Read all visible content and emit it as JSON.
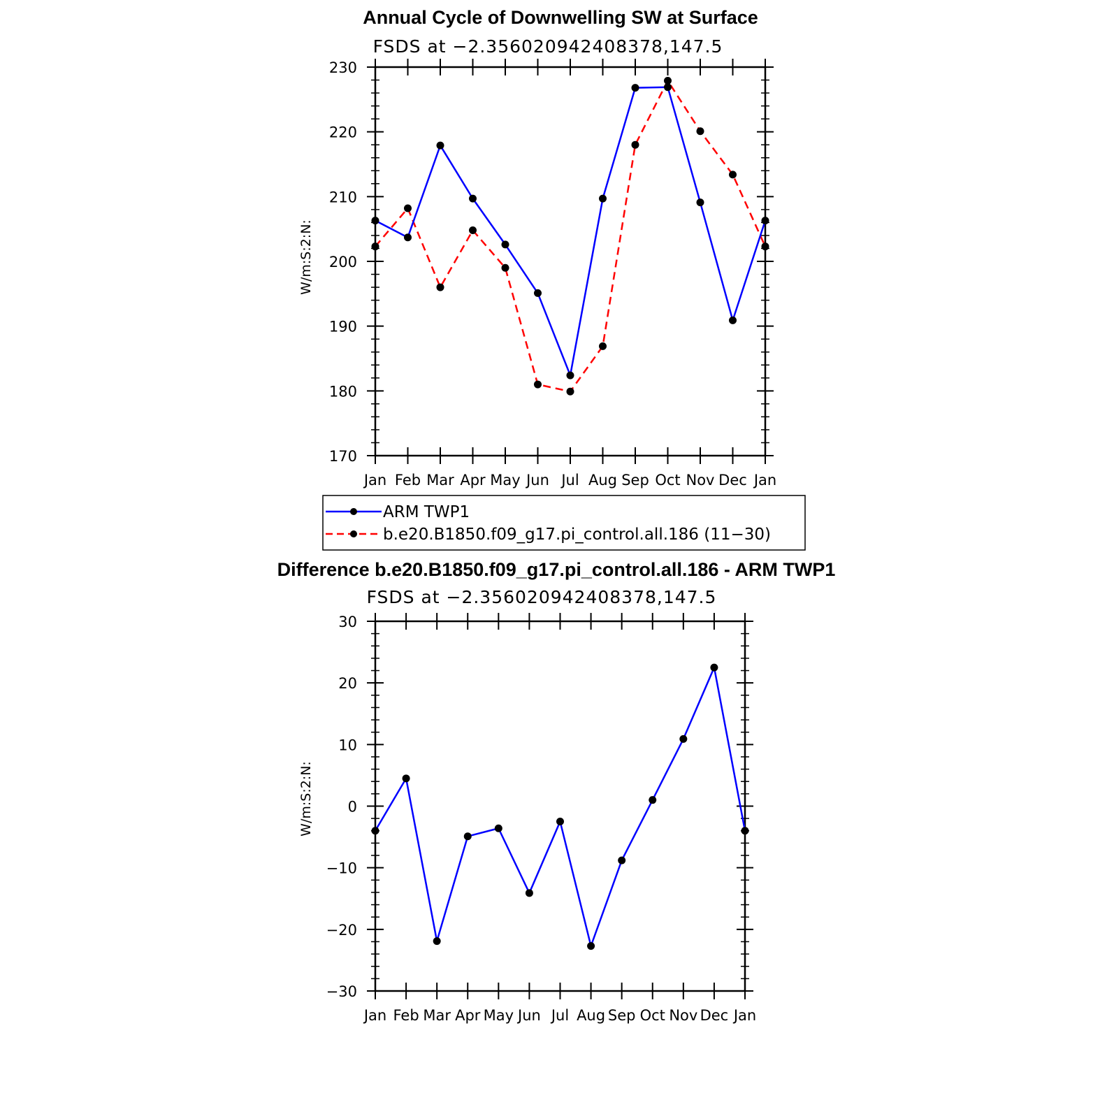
{
  "chart_data": [
    {
      "type": "line",
      "title": "Annual Cycle of Downwelling SW at Surface",
      "subtitle": "FSDS at −2.356020942408378,147.5",
      "ylabel": "W/m:S:2:N:",
      "xlabel": "",
      "categories": [
        "Jan",
        "Feb",
        "Mar",
        "Apr",
        "May",
        "Jun",
        "Jul",
        "Aug",
        "Sep",
        "Oct",
        "Nov",
        "Dec",
        "Jan"
      ],
      "ylim": [
        170,
        230
      ],
      "yticks": [
        "230",
        "220",
        "210",
        "200",
        "190",
        "180",
        "170"
      ],
      "ytick_values": [
        230,
        220,
        210,
        200,
        190,
        180,
        170
      ],
      "series": [
        {
          "name": "ARM TWP1",
          "color": "#0000ff",
          "dash": "solid",
          "values": [
            206.3,
            203.7,
            217.9,
            209.7,
            202.6,
            195.1,
            182.4,
            209.7,
            226.8,
            226.9,
            209.1,
            190.9,
            206.3
          ]
        },
        {
          "name": "b.e20.B1850.f09_g17.pi_control.all.186 (11−30)",
          "color": "#ff0000",
          "dash": "dashed",
          "values": [
            202.3,
            208.2,
            196.0,
            204.8,
            199.0,
            181.0,
            179.9,
            186.9,
            218.0,
            227.9,
            220.1,
            213.4,
            202.3
          ]
        }
      ],
      "legend": "below"
    },
    {
      "type": "line",
      "title": "Difference b.e20.B1850.f09_g17.pi_control.all.186 - ARM TWP1",
      "subtitle": "FSDS at −2.356020942408378,147.5",
      "ylabel": "W/m:S:2:N:",
      "xlabel": "",
      "categories": [
        "Jan",
        "Feb",
        "Mar",
        "Apr",
        "May",
        "Jun",
        "Jul",
        "Aug",
        "Sep",
        "Oct",
        "Nov",
        "Dec",
        "Jan"
      ],
      "ylim": [
        -30,
        30
      ],
      "yticks": [
        "30",
        "20",
        "10",
        "0",
        "−10",
        "−20",
        "−30"
      ],
      "ytick_values": [
        30,
        20,
        10,
        0,
        -10,
        -20,
        -30
      ],
      "series": [
        {
          "color": "#0000ff",
          "dash": "solid",
          "values": [
            -4.0,
            4.5,
            -21.9,
            -4.9,
            -3.6,
            -14.1,
            -2.5,
            -22.7,
            -8.8,
            1.0,
            10.9,
            22.5,
            -4.0
          ]
        }
      ]
    }
  ]
}
